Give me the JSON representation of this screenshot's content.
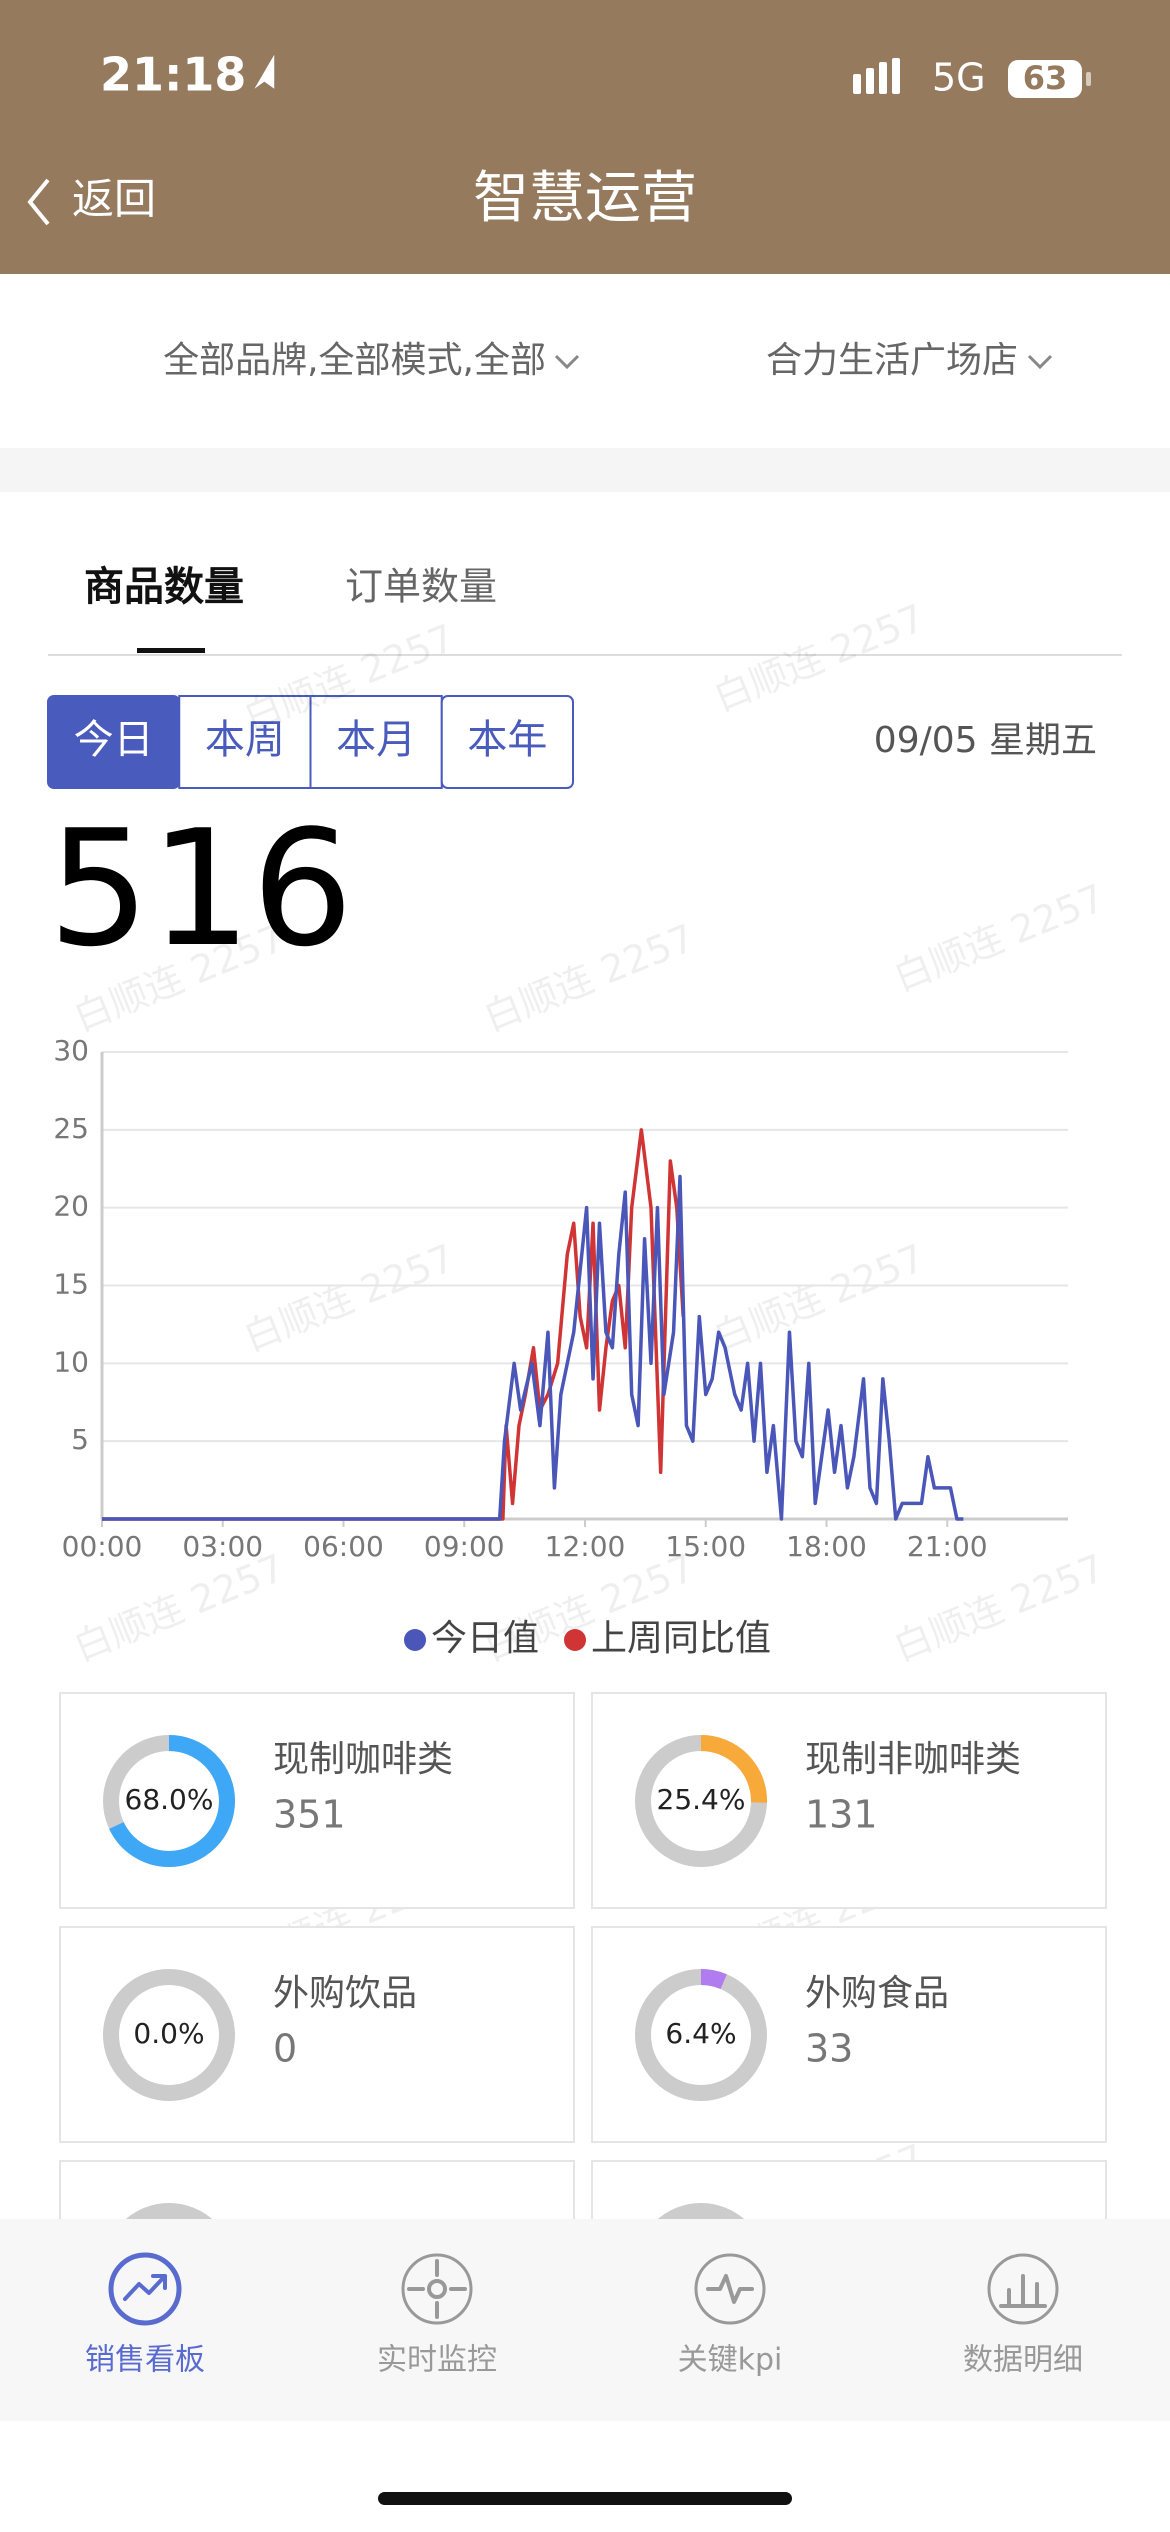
{
  "status_bar": {
    "time": "21:18",
    "network": "5G",
    "battery": "63"
  },
  "nav": {
    "back": "返回",
    "title": "智慧运营"
  },
  "filters": [
    "全部品牌,全部模式,全部",
    "合力生活广场店"
  ],
  "tabs": [
    "商品数量",
    "订单数量"
  ],
  "periods": [
    "今日",
    "本周",
    "本月",
    "本年"
  ],
  "date": "09/05 星期五",
  "total": 516,
  "watermark": "白顺连 2257",
  "chart_data": {
    "type": "line",
    "xlim": [
      0,
      24
    ],
    "ylim": [
      0,
      30
    ],
    "xticks": [
      {
        "value": 0,
        "label": "00:00"
      },
      {
        "value": 3,
        "label": "03:00"
      },
      {
        "value": 6,
        "label": "06:00"
      },
      {
        "value": 9,
        "label": "09:00"
      },
      {
        "value": 12,
        "label": "12:00"
      },
      {
        "value": 15,
        "label": "15:00"
      },
      {
        "value": 18,
        "label": "18:00"
      },
      {
        "value": 21,
        "label": "21:00"
      }
    ],
    "yticks": [
      5,
      10,
      15,
      20,
      25,
      30
    ],
    "grid": true,
    "legend": "bottom",
    "series": [
      {
        "name": "今日值",
        "color": "#4a56b8",
        "x": [
          0,
          9.88,
          10,
          10.24,
          10.4,
          10.68,
          10.88,
          11.08,
          11.24,
          11.4,
          11.72,
          12.04,
          12.2,
          12.36,
          12.52,
          12.68,
          12.84,
          13,
          13.16,
          13.32,
          13.48,
          13.64,
          13.8,
          13.96,
          14.2,
          14.36,
          14.52,
          14.68,
          14.84,
          15,
          15.16,
          15.32,
          15.48,
          15.72,
          15.88,
          16.04,
          16.2,
          16.36,
          16.52,
          16.68,
          16.88,
          17.08,
          17.24,
          17.4,
          17.56,
          17.72,
          17.88,
          18.04,
          18.2,
          18.36,
          18.52,
          18.68,
          18.92,
          19.08,
          19.24,
          19.4,
          19.56,
          19.72,
          19.88,
          20.36,
          20.52,
          20.68,
          21.08,
          21.24,
          21.4
        ],
        "values": [
          0,
          0,
          5,
          10,
          7,
          10,
          6,
          12,
          2,
          8,
          12,
          20,
          9,
          19,
          12,
          11,
          17,
          21,
          8,
          6,
          18,
          10,
          20,
          8,
          12,
          22,
          6,
          5,
          13,
          8,
          9,
          12,
          11,
          8,
          7,
          10,
          5,
          10,
          3,
          6,
          0,
          12,
          5,
          4,
          10,
          1,
          4,
          7,
          3,
          6,
          2,
          4,
          9,
          2,
          1,
          9,
          5,
          0,
          1,
          1,
          4,
          2,
          2,
          0,
          0
        ]
      },
      {
        "name": "上周同比值",
        "color": "#d03434",
        "x": [
          0,
          9.96,
          10.04,
          10.2,
          10.36,
          10.52,
          10.72,
          10.88,
          11.08,
          11.32,
          11.56,
          11.72,
          11.88,
          12.04,
          12.2,
          12.36,
          12.52,
          12.68,
          12.84,
          13,
          13.16,
          13.4,
          13.64,
          13.88,
          14.12,
          14.28,
          14.44
        ],
        "values": [
          0,
          0,
          6,
          1,
          6,
          8,
          11,
          7,
          8,
          10,
          17,
          19,
          13,
          11,
          19,
          7,
          11,
          14,
          15,
          11,
          20,
          25,
          20,
          3,
          23,
          20,
          13
        ]
      }
    ]
  },
  "cards": [
    {
      "name": "现制咖啡类",
      "value": 351,
      "percent": 68.0,
      "percent_label": "68.0%",
      "color": "#3ea7f6"
    },
    {
      "name": "现制非咖啡类",
      "value": 131,
      "percent": 25.4,
      "percent_label": "25.4%",
      "color": "#f7a93a"
    },
    {
      "name": "外购饮品",
      "value": 0,
      "percent": 0.0,
      "percent_label": "0.0%",
      "color": "#3ea7f6"
    },
    {
      "name": "外购食品",
      "value": 33,
      "percent": 6.4,
      "percent_label": "6.4%",
      "color": "#b07cf0"
    }
  ],
  "bottom_nav": [
    "销售看板",
    "实时监控",
    "关键kpi",
    "数据明细"
  ]
}
